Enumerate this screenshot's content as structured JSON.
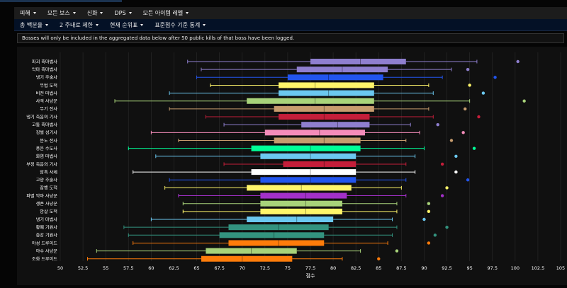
{
  "menubar": {
    "items": [
      "피해",
      "모든 보스",
      "신화",
      "DPS",
      "모든 아이템 레벨"
    ]
  },
  "subbar": {
    "items": [
      "총 백분율",
      "2 주내로 제한",
      "현재 순위표",
      "표준점수 기준 통계"
    ]
  },
  "notice": "Bosses will only be included in the aggregated data below after 50 public kills of that boss have been logged.",
  "colors": {
    "background": "#101010",
    "menubar": "#1c1c1c",
    "subbar": "#041126"
  },
  "chart_data": {
    "type": "boxplot",
    "orientation": "horizontal",
    "xlabel": "점수",
    "xlim": [
      50,
      105
    ],
    "xticks": [
      "50",
      "52.5",
      "55",
      "57.5",
      "60",
      "62.5",
      "65",
      "67.5",
      "70",
      "72.5",
      "75",
      "77.5",
      "80",
      "82.5",
      "85",
      "87.5",
      "90",
      "92.5",
      "95",
      "97.5",
      "100",
      "102.5",
      "105"
    ],
    "grid": true,
    "series": [
      {
        "name": "파괴 흑마법사",
        "color": "#8f7fcf",
        "min": 64,
        "q1": 77.5,
        "median": 83,
        "q3": 88,
        "max": 95.8,
        "outlier": 100.3
      },
      {
        "name": "악마 흑마법사",
        "color": "#8f7fcf",
        "min": 65.5,
        "q1": 76,
        "median": 81,
        "q3": 86,
        "max": 93,
        "outlier": 94.8
      },
      {
        "name": "냉기 주술사",
        "color": "#2255ee",
        "min": 65,
        "q1": 75,
        "median": 79.5,
        "q3": 85.5,
        "max": 92,
        "outlier": 97.8
      },
      {
        "name": "무법 도적",
        "color": "#fff56a",
        "min": 66.5,
        "q1": 74,
        "median": 78,
        "q3": 84.5,
        "max": 90.5,
        "outlier": 95
      },
      {
        "name": "비전 마법사",
        "color": "#6bc8f0",
        "min": 62,
        "q1": 74,
        "median": 79.5,
        "q3": 84.5,
        "max": 91,
        "outlier": 96.5
      },
      {
        "name": "사격 사냥꾼",
        "color": "#a8d37a",
        "min": 56,
        "q1": 70.5,
        "median": 78,
        "q3": 84.5,
        "max": 95,
        "outlier": 101
      },
      {
        "name": "무기 전사",
        "color": "#c79c6e",
        "min": 62,
        "q1": 73.5,
        "median": 79,
        "q3": 84.5,
        "max": 90.5,
        "outlier": 94.5
      },
      {
        "name": "냉기 죽음의 기사",
        "color": "#c41e3a",
        "min": 66,
        "q1": 74,
        "median": 79,
        "q3": 84,
        "max": 91,
        "outlier": 96
      },
      {
        "name": "고통 흑마법사",
        "color": "#8f7fcf",
        "min": 68,
        "q1": 76.5,
        "median": 80.5,
        "q3": 84,
        "max": 88.5,
        "outlier": 91.5
      },
      {
        "name": "징벌 성기사",
        "color": "#f48cba",
        "min": 60,
        "q1": 72.5,
        "median": 78.5,
        "q3": 83.5,
        "max": 89.5,
        "outlier": 94.3
      },
      {
        "name": "분노 전사",
        "color": "#c79c6e",
        "min": 63,
        "q1": 73.5,
        "median": 79,
        "q3": 83,
        "max": 88,
        "outlier": 93
      },
      {
        "name": "풍운 수도사",
        "color": "#00ff98",
        "min": 57.5,
        "q1": 71,
        "median": 77.5,
        "q3": 83,
        "max": 90,
        "outlier": 95.5
      },
      {
        "name": "화염 마법사",
        "color": "#6bc8f0",
        "min": 60.5,
        "q1": 72,
        "median": 77.5,
        "q3": 82.5,
        "max": 89,
        "outlier": 93.5
      },
      {
        "name": "부정 죽음의 기사",
        "color": "#c41e3a",
        "min": 68,
        "q1": 74.5,
        "median": 79,
        "q3": 82.5,
        "max": 88,
        "outlier": 92
      },
      {
        "name": "암흑 사제",
        "color": "#ffffff",
        "min": 58,
        "q1": 71,
        "median": 77.5,
        "q3": 82.5,
        "max": 89,
        "outlier": 93.5
      },
      {
        "name": "고양 주술사",
        "color": "#2255ee",
        "min": 62,
        "q1": 72,
        "median": 77.5,
        "q3": 82.5,
        "max": 88,
        "outlier": 94.8
      },
      {
        "name": "잠행 도적",
        "color": "#fff56a",
        "min": 61.5,
        "q1": 70.5,
        "median": 76.5,
        "q3": 82,
        "max": 87.5,
        "outlier": 92.5
      },
      {
        "name": "파멸 악마 사냥꾼",
        "color": "#a330c9",
        "min": 63,
        "q1": 72,
        "median": 77,
        "q3": 81.5,
        "max": 88,
        "outlier": 92
      },
      {
        "name": "생존 사냥꾼",
        "color": "#a8d37a",
        "min": 63.5,
        "q1": 72,
        "median": 77,
        "q3": 81,
        "max": 87,
        "outlier": 90.5
      },
      {
        "name": "암살 도적",
        "color": "#fff56a",
        "min": 63.5,
        "q1": 72,
        "median": 77,
        "q3": 81,
        "max": 87,
        "outlier": 90.5
      },
      {
        "name": "냉기 마법사",
        "color": "#6bc8f0",
        "min": 60,
        "q1": 70.5,
        "median": 76,
        "q3": 80,
        "max": 86.5,
        "outlier": 90
      },
      {
        "name": "황폐 기원사",
        "color": "#33937f",
        "min": 57,
        "q1": 68.5,
        "median": 74,
        "q3": 79.5,
        "max": 87,
        "outlier": 92.5
      },
      {
        "name": "증강 기원사",
        "color": "#33937f",
        "min": 57.5,
        "q1": 67.5,
        "median": 73.5,
        "q3": 79,
        "max": 86.5,
        "outlier": 91.2
      },
      {
        "name": "야성 드루이드",
        "color": "#ff7c0a",
        "min": 58,
        "q1": 68.5,
        "median": 74,
        "q3": 79,
        "max": 86,
        "outlier": 90.5
      },
      {
        "name": "야수 사냥꾼",
        "color": "#a8d37a",
        "min": 54,
        "q1": 66,
        "median": 71,
        "q3": 76,
        "max": 83,
        "outlier": 87
      },
      {
        "name": "조화 드루이드",
        "color": "#ff7c0a",
        "min": 53,
        "q1": 65.5,
        "median": 70,
        "q3": 75.5,
        "max": 81,
        "outlier": 85
      }
    ]
  }
}
